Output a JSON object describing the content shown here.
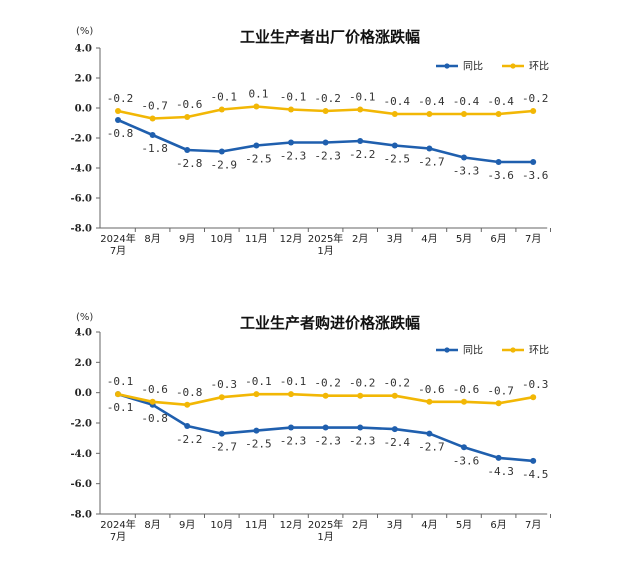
{
  "chart_data": [
    {
      "type": "line",
      "title": "工业生产者出厂价格涨跌幅",
      "unit": "(%)",
      "ylim": [
        -8.0,
        4.0
      ],
      "yticks": [
        "4.0",
        "2.0",
        "0.0",
        "-2.0",
        "-4.0",
        "-6.0",
        "-8.0"
      ],
      "categories": [
        [
          "2024年",
          "7月"
        ],
        [
          "8月"
        ],
        [
          "9月"
        ],
        [
          "10月"
        ],
        [
          "11月"
        ],
        [
          "12月"
        ],
        [
          "2025年",
          "1月"
        ],
        [
          "2月"
        ],
        [
          "3月"
        ],
        [
          "4月"
        ],
        [
          "5月"
        ],
        [
          "6月"
        ],
        [
          "7月"
        ]
      ],
      "legend_position": "top-right",
      "series": [
        {
          "name": "同比",
          "color": "#1f5fae",
          "values": [
            -0.8,
            -1.8,
            -2.8,
            -2.9,
            -2.5,
            -2.3,
            -2.3,
            -2.2,
            -2.5,
            -2.7,
            -3.3,
            -3.6,
            -3.6
          ],
          "labels": [
            "-0.8",
            "-1.8",
            "-2.8",
            "-2.9",
            "-2.5",
            "-2.3",
            "-2.3",
            "-2.2",
            "-2.5",
            "-2.7",
            "-3.3",
            "-3.6",
            "-3.6"
          ]
        },
        {
          "name": "环比",
          "color": "#f2b705",
          "values": [
            -0.2,
            -0.7,
            -0.6,
            -0.1,
            0.1,
            -0.1,
            -0.2,
            -0.1,
            -0.4,
            -0.4,
            -0.4,
            -0.4,
            -0.2
          ],
          "labels": [
            "-0.2",
            "-0.7",
            "-0.6",
            "-0.1",
            "0.1",
            "-0.1",
            "-0.2",
            "-0.1",
            "-0.4",
            "-0.4",
            "-0.4",
            "-0.4",
            "-0.2"
          ]
        }
      ]
    },
    {
      "type": "line",
      "title": "工业生产者购进价格涨跌幅",
      "unit": "(%)",
      "ylim": [
        -8.0,
        4.0
      ],
      "yticks": [
        "4.0",
        "2.0",
        "0.0",
        "-2.0",
        "-4.0",
        "-6.0",
        "-8.0"
      ],
      "categories": [
        [
          "2024年",
          "7月"
        ],
        [
          "8月"
        ],
        [
          "9月"
        ],
        [
          "10月"
        ],
        [
          "11月"
        ],
        [
          "12月"
        ],
        [
          "2025年",
          "1月"
        ],
        [
          "2月"
        ],
        [
          "3月"
        ],
        [
          "4月"
        ],
        [
          "5月"
        ],
        [
          "6月"
        ],
        [
          "7月"
        ]
      ],
      "legend_position": "top-right",
      "series": [
        {
          "name": "同比",
          "color": "#1f5fae",
          "values": [
            -0.1,
            -0.8,
            -2.2,
            -2.7,
            -2.5,
            -2.3,
            -2.3,
            -2.3,
            -2.4,
            -2.7,
            -3.6,
            -4.3,
            -4.5
          ],
          "labels": [
            "-0.1",
            "-0.8",
            "-2.2",
            "-2.7",
            "-2.5",
            "-2.3",
            "-2.3",
            "-2.3",
            "-2.4",
            "-2.7",
            "-3.6",
            "-4.3",
            "-4.5"
          ]
        },
        {
          "name": "环比",
          "color": "#f2b705",
          "values": [
            -0.1,
            -0.6,
            -0.8,
            -0.3,
            -0.1,
            -0.1,
            -0.2,
            -0.2,
            -0.2,
            -0.6,
            -0.6,
            -0.7,
            -0.3
          ],
          "labels": [
            "-0.1",
            "-0.6",
            "-0.8",
            "-0.3",
            "-0.1",
            "-0.1",
            "-0.2",
            "-0.2",
            "-0.2",
            "-0.6",
            "-0.6",
            "-0.7",
            "-0.3"
          ]
        }
      ]
    }
  ]
}
